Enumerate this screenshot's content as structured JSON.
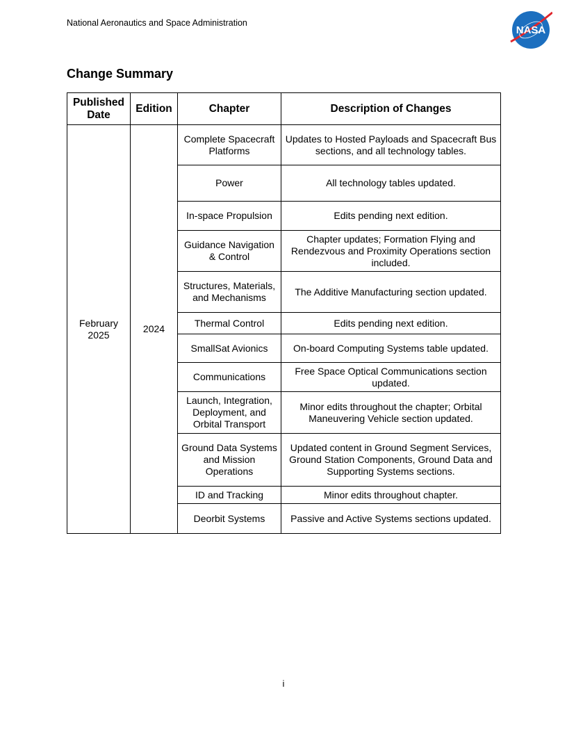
{
  "header": {
    "organization": "National Aeronautics and Space Administration",
    "logo_text": "NASA"
  },
  "title": "Change Summary",
  "table": {
    "headers": [
      "Published Date",
      "Edition",
      "Chapter",
      "Description of Changes"
    ],
    "published_date": "February 2025",
    "edition": "2024",
    "rows": [
      {
        "chapter": "Complete Spacecraft Platforms",
        "description": "Updates to Hosted Payloads and Spacecraft Bus sections, and all technology tables."
      },
      {
        "chapter": "Power",
        "description": "All technology tables updated."
      },
      {
        "chapter": "In-space Propulsion",
        "description": "Edits pending next edition."
      },
      {
        "chapter": "Guidance Navigation & Control",
        "description": "Chapter updates; Formation Flying and Rendezvous and Proximity Operations section included."
      },
      {
        "chapter": "Structures, Materials, and Mechanisms",
        "description": "The Additive Manufacturing section updated."
      },
      {
        "chapter": "Thermal Control",
        "description": "Edits pending next edition."
      },
      {
        "chapter": "SmallSat Avionics",
        "description": "On-board Computing Systems table updated."
      },
      {
        "chapter": "Communications",
        "description": "Free Space Optical Communications section updated."
      },
      {
        "chapter": "Launch, Integration, Deployment, and Orbital Transport",
        "description": "Minor edits throughout the chapter; Orbital Maneuvering Vehicle section updated."
      },
      {
        "chapter": "Ground Data Systems and Mission Operations",
        "description": "Updated content in Ground Segment Services, Ground Station Components, Ground Data and Supporting Systems sections."
      },
      {
        "chapter": "ID and Tracking",
        "description": "Minor edits throughout chapter."
      },
      {
        "chapter": "Deorbit Systems",
        "description": "Passive and Active Systems sections updated."
      }
    ]
  },
  "footer": {
    "page_number": "i"
  }
}
